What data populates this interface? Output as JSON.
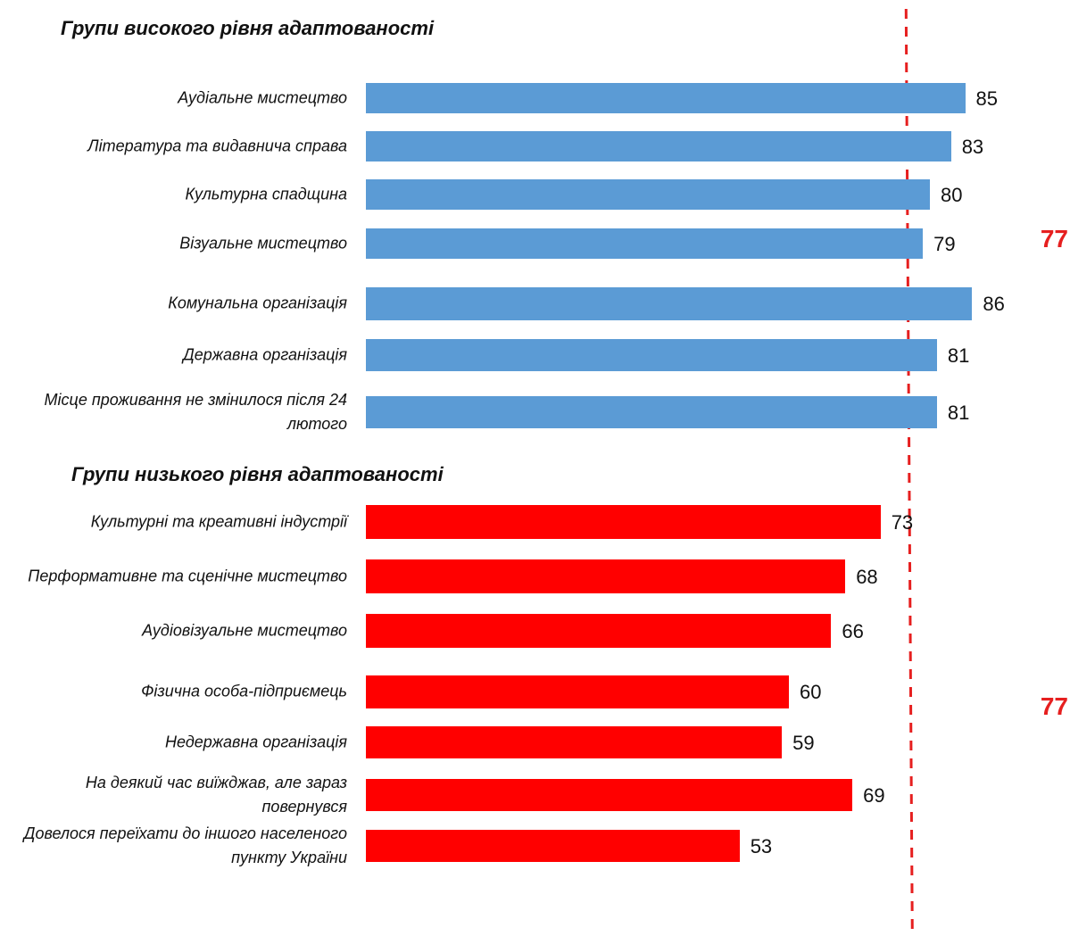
{
  "chart_data": {
    "type": "bar",
    "orientation": "horizontal",
    "reference_value": 77,
    "reference_style": "dashed",
    "reference_color": "#e61f1f",
    "groups": [
      {
        "title": "Групи високого рівня адаптованості",
        "color": "#5b9bd5",
        "reference_label": "77",
        "bars": [
          {
            "label": "Аудіальне мистецтво",
            "value": 85
          },
          {
            "label": "Література та видавнича справа",
            "value": 83
          },
          {
            "label": "Культурна спадщина",
            "value": 80
          },
          {
            "label": "Візуальне мистецтво",
            "value": 79
          },
          {
            "label": "Комунальна організація",
            "value": 86
          },
          {
            "label": "Державна організація",
            "value": 81
          },
          {
            "label": "Місце проживання не змінилося після 24 лютого",
            "value": 81
          }
        ]
      },
      {
        "title": "Групи низького рівня адаптованості",
        "color": "#ff0000",
        "reference_label": "77",
        "bars": [
          {
            "label": "Культурні та креативні індустрії",
            "value": 73
          },
          {
            "label": "Перформативне та сценічне мистецтво",
            "value": 68
          },
          {
            "label": "Аудіовізуальне мистецтво",
            "value": 66
          },
          {
            "label": "Фізична особа-підприємець",
            "value": 60
          },
          {
            "label": "Недержавна організація",
            "value": 59
          },
          {
            "label": "На деякий час виїжджав, але зараз повернувся",
            "value": 69
          },
          {
            "label": "Довелося переїхати до іншого населеного пункту України",
            "value": 53
          }
        ]
      }
    ]
  }
}
